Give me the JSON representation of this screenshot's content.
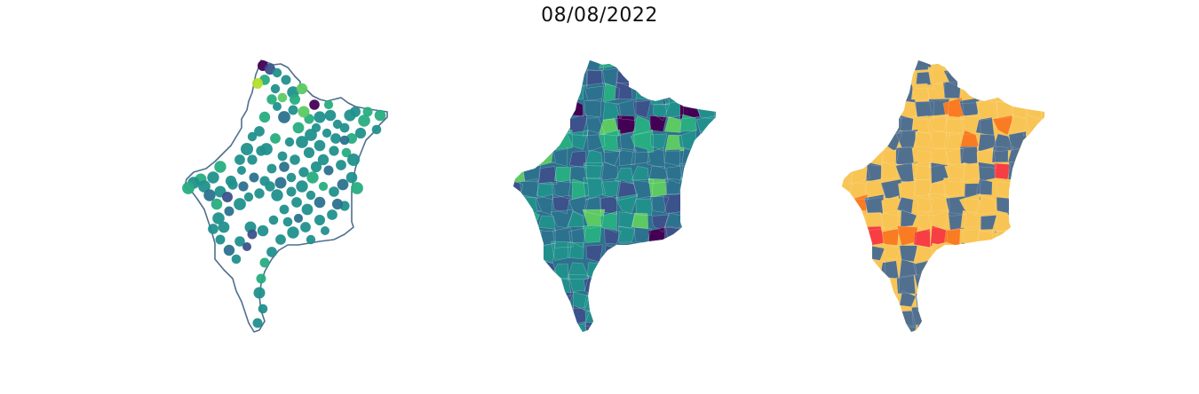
{
  "title": "08/08/2022",
  "colors": {
    "outline": "#4e6f8e",
    "viridis": [
      "#440154",
      "#3b528b",
      "#2c728e",
      "#21908d",
      "#27ad81",
      "#5dc963",
      "#b5de2b",
      "#fde725"
    ],
    "categories": [
      "#f8c453",
      "#51708f",
      "#f97b22",
      "#f63e43"
    ]
  },
  "panels": [
    {
      "name": "points-map",
      "style": "points on state outline"
    },
    {
      "name": "choropleth-map",
      "style": "municipalities colored by viridis scale"
    },
    {
      "name": "category-map",
      "style": "municipalities colored by category"
    }
  ]
}
